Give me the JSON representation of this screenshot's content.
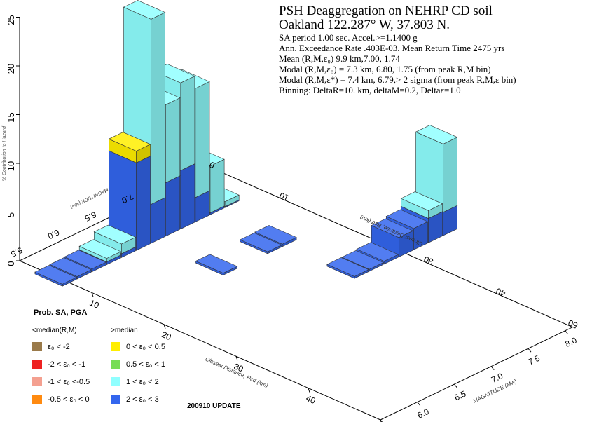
{
  "header": {
    "title": "PSH Deaggregation on NEHRP CD soil",
    "location": "Oakland 122.287° W, 37.803 N.",
    "lines": [
      "SA period 1.00 sec. Accel.>=1.1400  g",
      "Ann. Exceedance Rate .403E-03. Mean Return Time 2475  yrs",
      "Mean (R,M,ε₀)   9.9 km,7.00,  1.74",
      "Modal (R,M,ε₀) =  7.3 km, 6.80, 1.75 (from peak R,M bin)",
      "Modal (R,M,ε*) =  7.4 km, 6.79,> 2 sigma      (from peak R,M,ε bin)",
      "Binning: DeltaR=10. km, deltaM=0.2, Deltaε=1.0"
    ]
  },
  "legend": {
    "title": "Prob. SA, PGA",
    "left_header": "<median(R,M)",
    "right_header": ">median",
    "items": [
      {
        "label": "ε₀ < -2",
        "color": "#9a7a4a"
      },
      {
        "label": "-2 < ε₀ < -1",
        "color": "#ee2222"
      },
      {
        "label": "-1 < ε₀ <-0.5",
        "color": "#f4a090"
      },
      {
        "label": "-0.5 < ε₀ < 0",
        "color": "#ff8a10"
      },
      {
        "label": "0 < ε₀ < 0.5",
        "color": "#ffee00"
      },
      {
        "label": "0.5 < ε₀ < 1",
        "color": "#77dd55"
      },
      {
        "label": "1 < ε₀ < 2",
        "color": "#90ffff"
      },
      {
        "label": "2 < ε₀ < 3",
        "color": "#3366ee"
      }
    ]
  },
  "update_label": "200910 UPDATE",
  "chart_data": {
    "type": "bar",
    "title": "PSH Deaggregation on NEHRP CD soil",
    "zlabel": "% Contribution to Hazard",
    "zticks": [
      "0",
      "5",
      "10",
      "15",
      "20",
      "25"
    ],
    "zlim": [
      0,
      25
    ],
    "distance_axis_label": "Closest Distance, Rcd (km)",
    "distance_ticks": [
      "10",
      "20",
      "30",
      "40",
      "50"
    ],
    "back_distance_ticks": [
      "0",
      "10",
      "30",
      "40",
      "50"
    ],
    "magnitude_axis_label": "MAGNITUDE (Mw)",
    "magnitude_ticks": [
      "5.5",
      "6.0",
      "6.5",
      "7.0",
      "7.5",
      "8.0"
    ],
    "back_magnitude_ticks": [
      "5.5",
      "6.0",
      "6.5",
      "7.0"
    ],
    "series_order": [
      "2 < ε₀ < 3",
      "1 < ε₀ < 2",
      "0.5 < ε₀ < 1",
      "0 < ε₀ < 0.5"
    ],
    "bars": [
      {
        "r": 5,
        "m": 5.5,
        "parts": [
          0.2,
          0,
          0,
          0
        ]
      },
      {
        "r": 5,
        "m": 5.7,
        "parts": [
          0.25,
          0,
          0,
          0
        ]
      },
      {
        "r": 5,
        "m": 5.9,
        "parts": [
          0.3,
          0,
          0,
          0
        ]
      },
      {
        "r": 5,
        "m": 6.1,
        "parts": [
          0.3,
          0.35,
          0,
          0
        ]
      },
      {
        "r": 5,
        "m": 6.3,
        "parts": [
          0.4,
          1.0,
          0,
          0
        ]
      },
      {
        "r": 5,
        "m": 6.5,
        "parts": [
          9.0,
          0,
          0,
          1.2
        ]
      },
      {
        "r": 5,
        "m": 6.7,
        "parts": [
          4.0,
          19.0,
          0,
          0
        ]
      },
      {
        "r": 5,
        "m": 6.9,
        "parts": [
          5.5,
          8.0,
          0,
          0
        ]
      },
      {
        "r": 5,
        "m": 7.1,
        "parts": [
          6.0,
          9.0,
          0,
          0
        ]
      },
      {
        "r": 5,
        "m": 7.3,
        "parts": [
          2.5,
          11.2,
          0,
          0
        ]
      },
      {
        "r": 5,
        "m": 7.5,
        "parts": [
          0.2,
          4.8,
          0,
          0
        ]
      },
      {
        "r": 5,
        "m": 7.7,
        "parts": [
          0.1,
          0.5,
          0,
          0
        ]
      },
      {
        "r": 15,
        "m": 6.7,
        "parts": [
          0.2,
          0,
          0,
          0
        ]
      },
      {
        "r": 15,
        "m": 7.3,
        "parts": [
          0.2,
          0,
          0,
          0
        ]
      },
      {
        "r": 15,
        "m": 7.5,
        "parts": [
          0.25,
          0,
          0,
          0
        ]
      },
      {
        "r": 25,
        "m": 7.5,
        "parts": [
          0.2,
          0,
          0,
          0
        ]
      },
      {
        "r": 25,
        "m": 7.7,
        "parts": [
          0.2,
          0,
          0,
          0
        ]
      },
      {
        "r": 25,
        "m": 7.9,
        "parts": [
          0.3,
          0,
          0,
          0
        ]
      },
      {
        "r": 25,
        "m": 8.1,
        "parts": [
          2.0,
          0,
          0,
          0
        ]
      },
      {
        "r": 25,
        "m": 8.3,
        "parts": [
          2.2,
          0,
          0,
          0
        ]
      },
      {
        "r": 25,
        "m": 8.5,
        "parts": [
          2.5,
          0.8,
          0,
          0
        ]
      },
      {
        "r": 25,
        "m": 8.7,
        "parts": [
          2.4,
          7.0,
          0,
          0
        ]
      }
    ]
  }
}
